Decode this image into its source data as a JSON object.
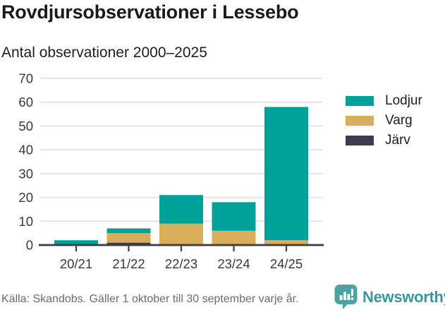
{
  "header": {
    "title": "Rovdjursobservationer i Lessebo",
    "subtitle": "Antal observationer 2000–2025"
  },
  "chart_data": {
    "type": "bar",
    "stacked": true,
    "title": "Rovdjursobservationer i Lessebo",
    "subtitle": "Antal observationer 2000–2025",
    "categories": [
      "20/21",
      "21/22",
      "22/23",
      "23/24",
      "24/25"
    ],
    "series": [
      {
        "name": "Lodjur",
        "color": "#00a09b",
        "values": [
          2,
          2,
          12,
          12,
          56
        ]
      },
      {
        "name": "Varg",
        "color": "#d9ad5a",
        "values": [
          0,
          4,
          9,
          6,
          2
        ]
      },
      {
        "name": "Järv",
        "color": "#3e3c4c",
        "values": [
          0,
          1,
          0,
          0,
          0
        ]
      }
    ],
    "stack_order_bottom_to_top": [
      "Järv",
      "Varg",
      "Lodjur"
    ],
    "totals": [
      2,
      7,
      21,
      18,
      58
    ],
    "xlabel": "",
    "ylabel": "",
    "ylim": [
      0,
      70
    ],
    "yticks": [
      0,
      10,
      20,
      30,
      40,
      50,
      60,
      70
    ],
    "grid": "horizontal",
    "legend_position": "right"
  },
  "footer": {
    "source": "Källa: Skandobs. Gäller 1 oktober till 30 september varje år.",
    "brand": "Newsworthy"
  },
  "colors": {
    "lodjur": "#00a09b",
    "varg": "#d9ad5a",
    "jarv": "#3e3c4c",
    "grid": "#e4e4e4",
    "axis": "#3c3c42",
    "body_text": "#38383d",
    "muted_text": "#6a6b74",
    "brand_teal": "#3d959b",
    "logo_bubble": "#4ba3a3"
  }
}
